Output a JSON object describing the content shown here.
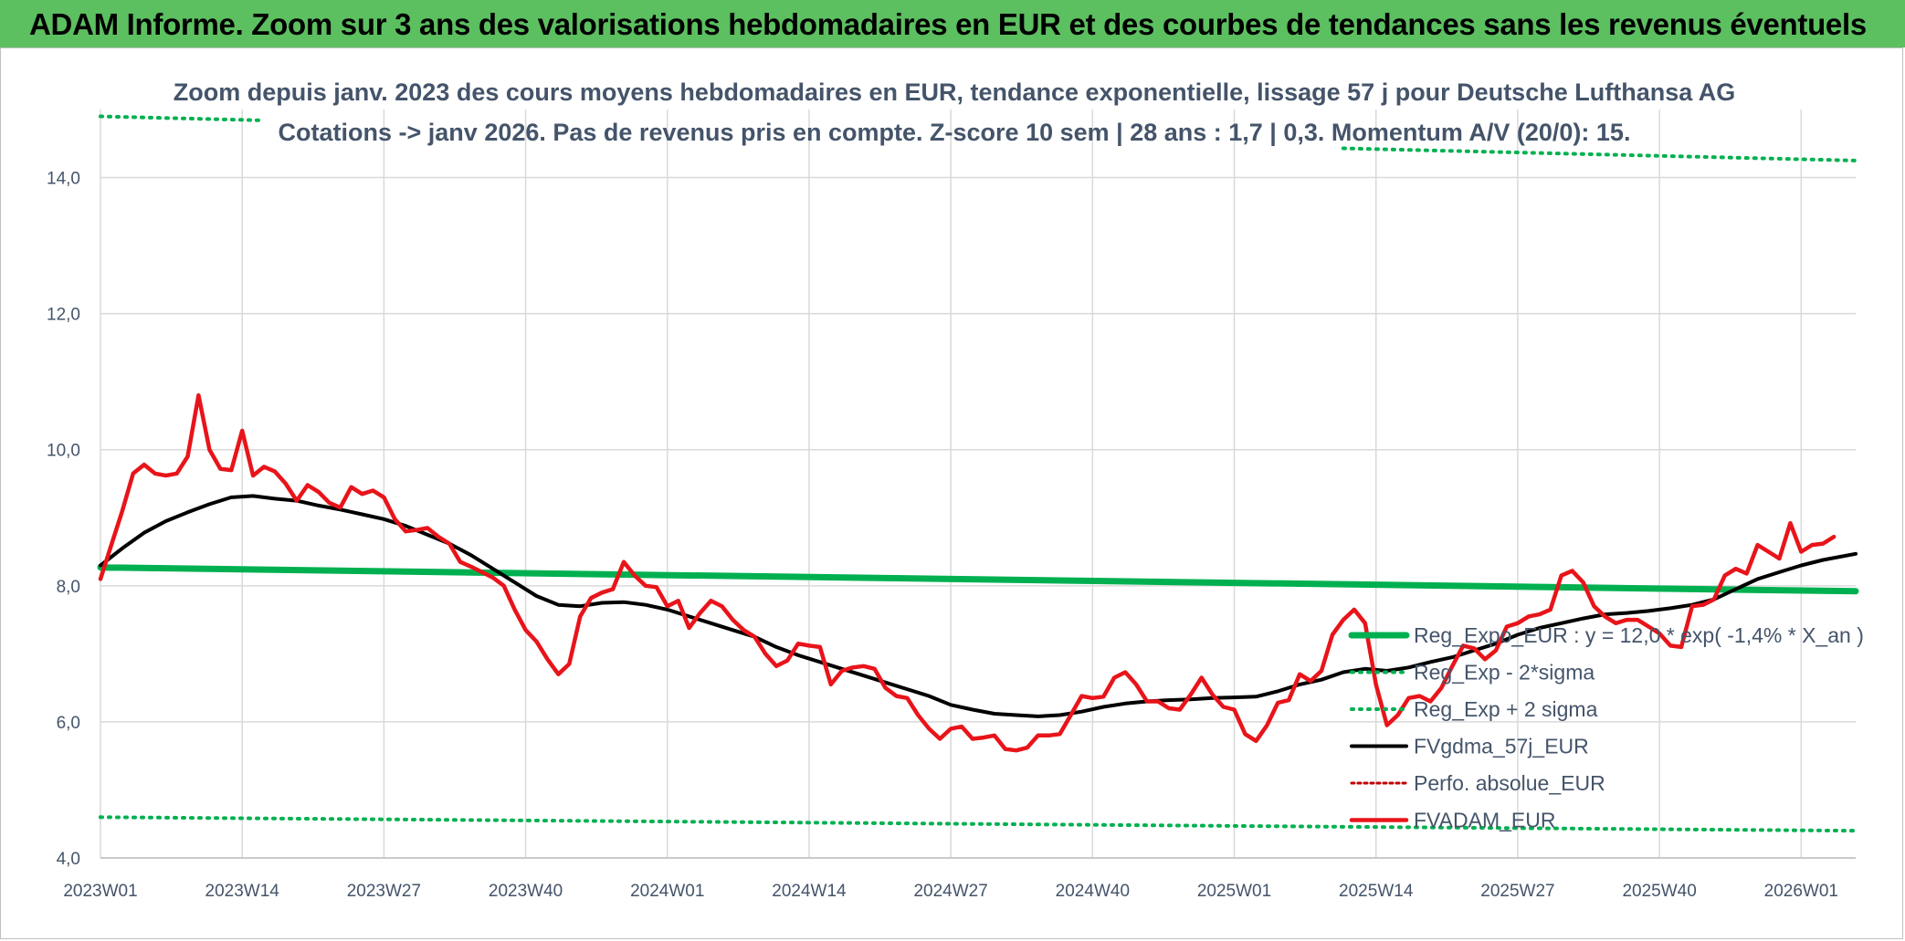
{
  "header": {
    "title": "ADAM Informe. Zoom sur 3 ans des valorisations hebdomadaires en EUR et des courbes de tendances sans les revenus éventuels"
  },
  "colors": {
    "header_bg": "#5cbf60",
    "reg": "#00b050",
    "sigma": "#00b050",
    "fvgdma": "#000000",
    "perfo": "#c00000",
    "fvadam": "#e8141a"
  },
  "chart_data": {
    "type": "line",
    "title_line1": "Zoom depuis janv. 2023 des cours moyens hebdomadaires en EUR, tendance exponentielle, lissage 57 j pour Deutsche Lufthansa AG",
    "title_line2": "Cotations -> janv 2026. Pas de revenus pris en compte. Z-score 10 sem | 28 ans : 1,7 | 0,3. Momentum A/V (20/0): 15.",
    "ylim": [
      4,
      15
    ],
    "y_ticks": [
      "4,0",
      "6,0",
      "8,0",
      "10,0",
      "12,0",
      "14,0"
    ],
    "y_tick_values": [
      4,
      6,
      8,
      10,
      12,
      14
    ],
    "x_ticks": [
      "2023W01",
      "2023W14",
      "2023W27",
      "2023W40",
      "2024W01",
      "2024W14",
      "2024W27",
      "2024W40",
      "2025W01",
      "2025W14",
      "2025W27",
      "2025W40",
      "2026W01"
    ],
    "x_tick_weeks": [
      1,
      14,
      27,
      40,
      53,
      66,
      79,
      92,
      105,
      118,
      131,
      144,
      157
    ],
    "x_range": [
      1,
      162
    ],
    "grid": true,
    "legend_position": "bottom-right",
    "series": [
      {
        "name": "Reg_Expo_EUR : y = 12,0 * exp( -1,4% *  X_an )",
        "style": "solid-thick",
        "points": [
          [
            1,
            8.27
          ],
          [
            162,
            7.92
          ]
        ]
      },
      {
        "name": "Reg_Exp - 2*sigma",
        "style": "dotted",
        "points": [
          [
            1,
            4.6
          ],
          [
            162,
            4.4
          ]
        ]
      },
      {
        "name": "Reg_Exp + 2 sigma",
        "style": "dotted",
        "segments": [
          [
            [
              1,
              14.9
            ],
            [
              16,
              14.84
            ]
          ],
          [
            [
              115,
              14.43
            ],
            [
              162,
              14.25
            ]
          ]
        ]
      },
      {
        "name": "FVgdma_57j_EUR",
        "style": "solid",
        "points": [
          [
            1,
            8.3
          ],
          [
            3,
            8.55
          ],
          [
            5,
            8.78
          ],
          [
            7,
            8.95
          ],
          [
            9,
            9.08
          ],
          [
            11,
            9.2
          ],
          [
            13,
            9.3
          ],
          [
            15,
            9.32
          ],
          [
            17,
            9.28
          ],
          [
            19,
            9.25
          ],
          [
            21,
            9.18
          ],
          [
            23,
            9.12
          ],
          [
            25,
            9.05
          ],
          [
            27,
            8.98
          ],
          [
            29,
            8.88
          ],
          [
            31,
            8.75
          ],
          [
            33,
            8.62
          ],
          [
            35,
            8.45
          ],
          [
            37,
            8.25
          ],
          [
            39,
            8.05
          ],
          [
            41,
            7.85
          ],
          [
            43,
            7.72
          ],
          [
            45,
            7.7
          ],
          [
            47,
            7.75
          ],
          [
            49,
            7.76
          ],
          [
            51,
            7.72
          ],
          [
            53,
            7.65
          ],
          [
            55,
            7.55
          ],
          [
            57,
            7.45
          ],
          [
            59,
            7.35
          ],
          [
            61,
            7.25
          ],
          [
            63,
            7.1
          ],
          [
            65,
            6.98
          ],
          [
            67,
            6.88
          ],
          [
            69,
            6.78
          ],
          [
            71,
            6.68
          ],
          [
            73,
            6.58
          ],
          [
            75,
            6.48
          ],
          [
            77,
            6.38
          ],
          [
            79,
            6.25
          ],
          [
            81,
            6.18
          ],
          [
            83,
            6.12
          ],
          [
            85,
            6.1
          ],
          [
            87,
            6.08
          ],
          [
            89,
            6.1
          ],
          [
            91,
            6.15
          ],
          [
            93,
            6.22
          ],
          [
            95,
            6.27
          ],
          [
            97,
            6.3
          ],
          [
            99,
            6.32
          ],
          [
            101,
            6.33
          ],
          [
            103,
            6.35
          ],
          [
            105,
            6.36
          ],
          [
            107,
            6.37
          ],
          [
            109,
            6.45
          ],
          [
            111,
            6.55
          ],
          [
            113,
            6.62
          ],
          [
            115,
            6.73
          ],
          [
            117,
            6.78
          ],
          [
            119,
            6.75
          ],
          [
            121,
            6.8
          ],
          [
            123,
            6.88
          ],
          [
            125,
            6.95
          ],
          [
            127,
            7.05
          ],
          [
            129,
            7.15
          ],
          [
            131,
            7.28
          ],
          [
            133,
            7.38
          ],
          [
            135,
            7.45
          ],
          [
            137,
            7.52
          ],
          [
            139,
            7.58
          ],
          [
            141,
            7.6
          ],
          [
            143,
            7.63
          ],
          [
            145,
            7.67
          ],
          [
            147,
            7.72
          ],
          [
            149,
            7.8
          ],
          [
            151,
            7.95
          ],
          [
            153,
            8.1
          ],
          [
            155,
            8.2
          ],
          [
            157,
            8.3
          ],
          [
            159,
            8.38
          ],
          [
            162,
            8.47
          ]
        ]
      },
      {
        "name": "Perfo. absolue_EUR",
        "style": "dotted-red",
        "points": []
      },
      {
        "name": "FVADAM_EUR",
        "style": "solid-thick",
        "points": [
          [
            1,
            8.1
          ],
          [
            2,
            8.6
          ],
          [
            3,
            9.1
          ],
          [
            4,
            9.65
          ],
          [
            5,
            9.78
          ],
          [
            6,
            9.65
          ],
          [
            7,
            9.62
          ],
          [
            8,
            9.65
          ],
          [
            9,
            9.9
          ],
          [
            10,
            10.8
          ],
          [
            11,
            10.0
          ],
          [
            12,
            9.72
          ],
          [
            13,
            9.7
          ],
          [
            14,
            10.28
          ],
          [
            15,
            9.62
          ],
          [
            16,
            9.75
          ],
          [
            17,
            9.68
          ],
          [
            18,
            9.5
          ],
          [
            19,
            9.25
          ],
          [
            20,
            9.48
          ],
          [
            21,
            9.38
          ],
          [
            22,
            9.22
          ],
          [
            23,
            9.15
          ],
          [
            24,
            9.45
          ],
          [
            25,
            9.35
          ],
          [
            26,
            9.4
          ],
          [
            27,
            9.3
          ],
          [
            28,
            8.98
          ],
          [
            29,
            8.8
          ],
          [
            30,
            8.82
          ],
          [
            31,
            8.85
          ],
          [
            32,
            8.72
          ],
          [
            33,
            8.62
          ],
          [
            34,
            8.35
          ],
          [
            35,
            8.28
          ],
          [
            36,
            8.2
          ],
          [
            37,
            8.12
          ],
          [
            38,
            8.0
          ],
          [
            39,
            7.65
          ],
          [
            40,
            7.35
          ],
          [
            41,
            7.18
          ],
          [
            42,
            6.92
          ],
          [
            43,
            6.7
          ],
          [
            44,
            6.85
          ],
          [
            45,
            7.55
          ],
          [
            46,
            7.82
          ],
          [
            47,
            7.9
          ],
          [
            48,
            7.95
          ],
          [
            49,
            8.35
          ],
          [
            50,
            8.15
          ],
          [
            51,
            8.0
          ],
          [
            52,
            7.98
          ],
          [
            53,
            7.7
          ],
          [
            54,
            7.78
          ],
          [
            55,
            7.38
          ],
          [
            56,
            7.6
          ],
          [
            57,
            7.78
          ],
          [
            58,
            7.7
          ],
          [
            59,
            7.5
          ],
          [
            60,
            7.35
          ],
          [
            61,
            7.25
          ],
          [
            62,
            7.0
          ],
          [
            63,
            6.82
          ],
          [
            64,
            6.9
          ],
          [
            65,
            7.15
          ],
          [
            66,
            7.12
          ],
          [
            67,
            7.1
          ],
          [
            68,
            6.55
          ],
          [
            69,
            6.75
          ],
          [
            70,
            6.8
          ],
          [
            71,
            6.82
          ],
          [
            72,
            6.78
          ],
          [
            73,
            6.5
          ],
          [
            74,
            6.38
          ],
          [
            75,
            6.35
          ],
          [
            76,
            6.1
          ],
          [
            77,
            5.9
          ],
          [
            78,
            5.75
          ],
          [
            79,
            5.9
          ],
          [
            80,
            5.93
          ],
          [
            81,
            5.75
          ],
          [
            82,
            5.77
          ],
          [
            83,
            5.8
          ],
          [
            84,
            5.6
          ],
          [
            85,
            5.58
          ],
          [
            86,
            5.62
          ],
          [
            87,
            5.8
          ],
          [
            88,
            5.8
          ],
          [
            89,
            5.82
          ],
          [
            90,
            6.1
          ],
          [
            91,
            6.38
          ],
          [
            92,
            6.35
          ],
          [
            93,
            6.37
          ],
          [
            94,
            6.65
          ],
          [
            95,
            6.73
          ],
          [
            96,
            6.55
          ],
          [
            97,
            6.3
          ],
          [
            98,
            6.3
          ],
          [
            99,
            6.2
          ],
          [
            100,
            6.18
          ],
          [
            101,
            6.4
          ],
          [
            102,
            6.65
          ],
          [
            103,
            6.4
          ],
          [
            104,
            6.22
          ],
          [
            105,
            6.18
          ],
          [
            106,
            5.82
          ],
          [
            107,
            5.72
          ],
          [
            108,
            5.95
          ],
          [
            109,
            6.28
          ],
          [
            110,
            6.32
          ],
          [
            111,
            6.7
          ],
          [
            112,
            6.6
          ],
          [
            113,
            6.75
          ],
          [
            114,
            7.28
          ],
          [
            115,
            7.5
          ],
          [
            116,
            7.65
          ],
          [
            117,
            7.45
          ],
          [
            118,
            6.55
          ],
          [
            119,
            5.95
          ],
          [
            120,
            6.1
          ],
          [
            121,
            6.35
          ],
          [
            122,
            6.38
          ],
          [
            123,
            6.3
          ],
          [
            124,
            6.5
          ],
          [
            125,
            6.82
          ],
          [
            126,
            7.12
          ],
          [
            127,
            7.08
          ],
          [
            128,
            6.92
          ],
          [
            129,
            7.05
          ],
          [
            130,
            7.4
          ],
          [
            131,
            7.45
          ],
          [
            132,
            7.55
          ],
          [
            133,
            7.58
          ],
          [
            134,
            7.65
          ],
          [
            135,
            8.15
          ],
          [
            136,
            8.22
          ],
          [
            137,
            8.05
          ],
          [
            138,
            7.7
          ],
          [
            139,
            7.55
          ],
          [
            140,
            7.45
          ],
          [
            141,
            7.5
          ],
          [
            142,
            7.5
          ],
          [
            143,
            7.4
          ],
          [
            144,
            7.3
          ],
          [
            145,
            7.12
          ],
          [
            146,
            7.1
          ],
          [
            147,
            7.7
          ],
          [
            148,
            7.72
          ],
          [
            149,
            7.8
          ],
          [
            150,
            8.15
          ],
          [
            151,
            8.25
          ],
          [
            152,
            8.18
          ],
          [
            153,
            8.6
          ],
          [
            154,
            8.5
          ],
          [
            155,
            8.4
          ],
          [
            156,
            8.92
          ],
          [
            157,
            8.5
          ],
          [
            158,
            8.6
          ],
          [
            159,
            8.62
          ],
          [
            160,
            8.72
          ]
        ]
      }
    ]
  }
}
